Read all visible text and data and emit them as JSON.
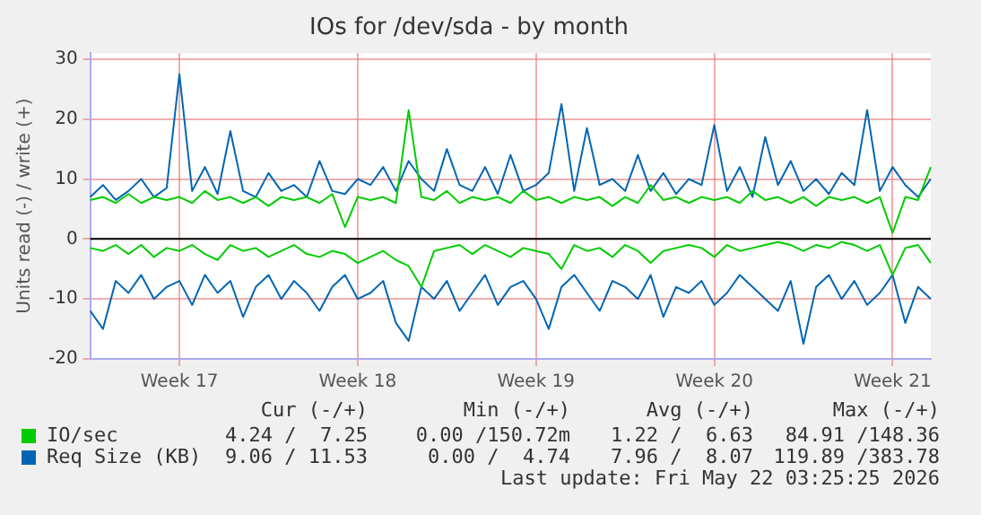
{
  "chart_data": {
    "type": "line",
    "title": "IOs for /dev/sda - by month",
    "ylabel": "Units read (-) / write (+)",
    "categories": [
      null,
      null,
      null,
      null,
      null,
      null,
      null,
      "Week 17",
      null,
      null,
      null,
      null,
      null,
      null,
      null,
      null,
      null,
      null,
      null,
      null,
      null,
      "Week 18",
      null,
      null,
      null,
      null,
      null,
      null,
      null,
      null,
      null,
      null,
      null,
      null,
      null,
      "Week 19",
      null,
      null,
      null,
      null,
      null,
      null,
      null,
      null,
      null,
      null,
      null,
      null,
      null,
      "Week 20",
      null,
      null,
      null,
      null,
      null,
      null,
      null,
      null,
      null,
      null,
      null,
      null,
      null,
      "Week 21",
      null,
      null,
      null
    ],
    "series": [
      {
        "name": "IO/sec",
        "color": "#00cc00",
        "values": [
          6.5,
          7,
          6,
          7.5,
          6,
          7,
          6.5,
          7,
          6,
          8,
          6.5,
          7,
          6,
          7,
          5.5,
          7,
          6.5,
          7,
          6,
          7.5,
          2,
          7,
          6.5,
          7,
          6,
          21.5,
          7,
          6.5,
          8,
          6,
          7,
          6.5,
          7,
          6,
          8,
          6.5,
          7,
          6,
          7,
          6.5,
          7,
          5.5,
          7,
          6,
          9,
          6.5,
          7,
          6,
          7,
          6.5,
          7,
          6,
          8,
          6.5,
          7,
          6,
          7,
          5.5,
          7,
          6.5,
          7,
          6,
          7,
          1,
          7,
          6.5,
          12
        ]
      },
      {
        "color": "#00cc00",
        "values": [
          -1.5,
          -2,
          -1,
          -2.5,
          -1,
          -3,
          -1.5,
          -2,
          -1,
          -2.5,
          -3.5,
          -1,
          -2,
          -1.5,
          -3,
          -2,
          -1,
          -2.5,
          -3,
          -2,
          -2.5,
          -4,
          -3,
          -2,
          -3.5,
          -4.5,
          -8,
          -2,
          -1.5,
          -1,
          -2.5,
          -1,
          -2,
          -3,
          -1.5,
          -2,
          -2.5,
          -5,
          -1,
          -2,
          -1.5,
          -3,
          -1,
          -2,
          -4,
          -2,
          -1.5,
          -1,
          -1.5,
          -3,
          -1,
          -2,
          -1.5,
          -1,
          -0.5,
          -1,
          -2,
          -1,
          -1.5,
          -0.5,
          -1,
          -2,
          -1,
          -6,
          -1.5,
          -1,
          -4
        ]
      },
      {
        "name": "Req Size (KB)",
        "color": "#0066b3",
        "values": [
          7,
          9,
          6.5,
          8,
          10,
          7,
          8.5,
          27.5,
          8,
          12,
          7.5,
          18,
          8,
          7,
          11,
          8,
          9,
          7,
          13,
          8,
          7.5,
          10,
          9,
          12,
          8,
          13,
          10,
          8,
          15,
          9,
          8,
          12,
          7.5,
          14,
          8,
          9,
          11,
          22.5,
          8,
          18.5,
          9,
          10,
          8,
          14,
          8,
          11,
          7.5,
          10,
          9,
          19,
          8,
          12,
          7,
          17,
          9,
          13,
          8,
          10,
          7.5,
          11,
          9,
          21.5,
          8,
          12,
          9,
          7,
          10
        ]
      },
      {
        "color": "#0066b3",
        "values": [
          -12,
          -15,
          -7,
          -9,
          -6,
          -10,
          -8,
          -7,
          -11,
          -6,
          -9,
          -7,
          -13,
          -8,
          -6,
          -10,
          -7,
          -9,
          -12,
          -8,
          -6,
          -10,
          -9,
          -7,
          -14,
          -17,
          -8,
          -10,
          -7,
          -12,
          -9,
          -6,
          -11,
          -8,
          -7,
          -10,
          -15,
          -8,
          -6,
          -9,
          -12,
          -7,
          -8,
          -10,
          -6,
          -13,
          -8,
          -9,
          -7,
          -11,
          -9,
          -6,
          -8,
          -10,
          -12,
          -7,
          -17.5,
          -8,
          -6,
          -10,
          -7,
          -11,
          -9,
          -6,
          -14,
          -8,
          -10
        ]
      }
    ],
    "ylim": [
      -20,
      31
    ],
    "yticks": [
      -20,
      -10,
      0,
      10,
      20,
      30
    ],
    "ref_lines": [
      {
        "axis": "y",
        "value": 0,
        "color": "#000000"
      }
    ],
    "grid": true,
    "legend": "bottom",
    "marker": "none",
    "annotations": [
      "Cur (-/+)",
      "Min (-/+)",
      "Avg (-/+)",
      "Max (-/+)",
      "4.24 /  7.25",
      "0.00 /150.72m",
      "1.22 /  6.63",
      "84.91 /148.36",
      "9.06 / 11.53",
      "0.00 /  4.74",
      "7.96 /  8.07",
      "119.89 /383.78",
      "Last update: Fri May 22 03:25:25 2026"
    ]
  }
}
